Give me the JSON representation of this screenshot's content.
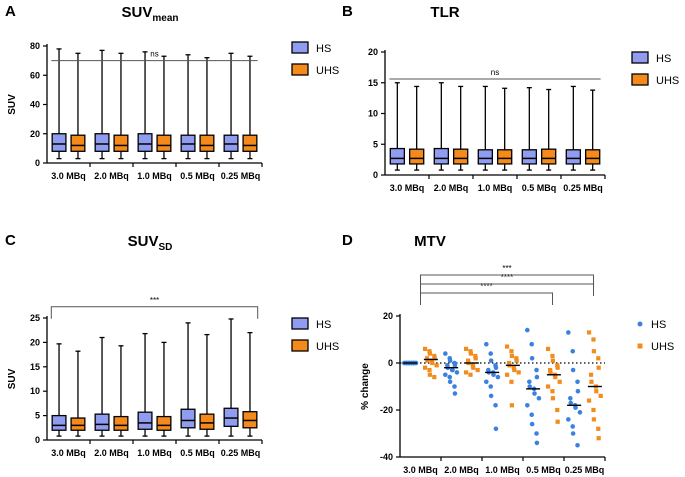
{
  "chart_data": [
    {
      "panel": "A",
      "type": "box",
      "title": "SUV",
      "title_sub": "mean",
      "ylabel": "SUV",
      "ylim": [
        0,
        80
      ],
      "yticks": [
        "0",
        "20",
        "40",
        "60",
        "80"
      ],
      "categories": [
        "3.0 MBq",
        "2.0 MBq",
        "1.0 MBq",
        "0.5 MBq",
        "0.25 MBq"
      ],
      "legend": [
        "HS",
        "UHS"
      ],
      "series": [
        {
          "name": "HS",
          "boxes": [
            {
              "min": 3,
              "q1": 8,
              "median": 13,
              "q3": 20,
              "max": 78
            },
            {
              "min": 3,
              "q1": 8,
              "median": 13,
              "q3": 20,
              "max": 77
            },
            {
              "min": 3,
              "q1": 8,
              "median": 13,
              "q3": 20,
              "max": 76
            },
            {
              "min": 3,
              "q1": 8,
              "median": 13,
              "q3": 19,
              "max": 74
            },
            {
              "min": 3,
              "q1": 8,
              "median": 13,
              "q3": 19,
              "max": 75
            }
          ]
        },
        {
          "name": "UHS",
          "boxes": [
            {
              "min": 3,
              "q1": 8,
              "median": 12,
              "q3": 19,
              "max": 75
            },
            {
              "min": 3,
              "q1": 8,
              "median": 12,
              "q3": 19,
              "max": 75
            },
            {
              "min": 3,
              "q1": 8,
              "median": 12,
              "q3": 19,
              "max": 73
            },
            {
              "min": 3,
              "q1": 8,
              "median": 12,
              "q3": 19,
              "max": 72
            },
            {
              "min": 3,
              "q1": 8,
              "median": 12,
              "q3": 19,
              "max": 73
            }
          ]
        }
      ],
      "significance": [
        {
          "from": 0,
          "to": 4,
          "y": 70,
          "label": "ns"
        }
      ]
    },
    {
      "panel": "B",
      "type": "box",
      "title": "TLR",
      "title_sub": "",
      "ylabel": "",
      "ylim": [
        0,
        20
      ],
      "yticks": [
        "0",
        "5",
        "10",
        "15",
        "20"
      ],
      "categories": [
        "3.0 MBq",
        "2.0 MBq",
        "1.0 MBq",
        "0.5 MBq",
        "0.25 MBq"
      ],
      "legend": [
        "HS",
        "UHS"
      ],
      "series": [
        {
          "name": "HS",
          "boxes": [
            {
              "min": 0.8,
              "q1": 1.8,
              "median": 2.7,
              "q3": 4.3,
              "max": 15.0
            },
            {
              "min": 0.8,
              "q1": 1.8,
              "median": 2.7,
              "q3": 4.3,
              "max": 15.0
            },
            {
              "min": 0.8,
              "q1": 1.8,
              "median": 2.7,
              "q3": 4.1,
              "max": 14.4
            },
            {
              "min": 0.8,
              "q1": 1.8,
              "median": 2.7,
              "q3": 4.1,
              "max": 14.2
            },
            {
              "min": 0.8,
              "q1": 1.8,
              "median": 2.7,
              "q3": 4.1,
              "max": 14.4
            }
          ]
        },
        {
          "name": "UHS",
          "boxes": [
            {
              "min": 0.8,
              "q1": 1.8,
              "median": 2.7,
              "q3": 4.2,
              "max": 14.4
            },
            {
              "min": 0.8,
              "q1": 1.8,
              "median": 2.7,
              "q3": 4.2,
              "max": 14.4
            },
            {
              "min": 0.8,
              "q1": 1.8,
              "median": 2.7,
              "q3": 4.1,
              "max": 14.1
            },
            {
              "min": 0.8,
              "q1": 1.8,
              "median": 2.7,
              "q3": 4.2,
              "max": 13.9
            },
            {
              "min": 0.8,
              "q1": 1.8,
              "median": 2.7,
              "q3": 4.1,
              "max": 13.8
            }
          ]
        }
      ],
      "significance": [
        {
          "from": 0,
          "to": 4,
          "y": 15.6,
          "label": "ns"
        }
      ]
    },
    {
      "panel": "C",
      "type": "box",
      "title": "SUV",
      "title_sub": "SD",
      "ylabel": "SUV",
      "ylim": [
        0,
        25
      ],
      "yticks": [
        "0",
        "5",
        "10",
        "15",
        "20",
        "25"
      ],
      "categories": [
        "3.0 MBq",
        "2.0 MBq",
        "1.0 MBq",
        "0.5 MBq",
        "0.25 MBq"
      ],
      "legend": [
        "HS",
        "UHS"
      ],
      "series": [
        {
          "name": "HS",
          "boxes": [
            {
              "min": 0.8,
              "q1": 2.0,
              "median": 3.0,
              "q3": 5.0,
              "max": 19.7
            },
            {
              "min": 0.8,
              "q1": 2.0,
              "median": 3.2,
              "q3": 5.3,
              "max": 21.0
            },
            {
              "min": 0.8,
              "q1": 2.2,
              "median": 3.5,
              "q3": 5.7,
              "max": 21.8
            },
            {
              "min": 0.8,
              "q1": 2.5,
              "median": 4.0,
              "q3": 6.3,
              "max": 24.0
            },
            {
              "min": 0.8,
              "q1": 2.8,
              "median": 4.5,
              "q3": 6.5,
              "max": 24.8
            }
          ]
        },
        {
          "name": "UHS",
          "boxes": [
            {
              "min": 0.8,
              "q1": 2.0,
              "median": 3.0,
              "q3": 4.5,
              "max": 18.2
            },
            {
              "min": 0.8,
              "q1": 2.0,
              "median": 3.0,
              "q3": 4.8,
              "max": 19.3
            },
            {
              "min": 0.8,
              "q1": 2.0,
              "median": 3.0,
              "q3": 4.8,
              "max": 20.0
            },
            {
              "min": 0.8,
              "q1": 2.2,
              "median": 3.5,
              "q3": 5.3,
              "max": 21.6
            },
            {
              "min": 0.8,
              "q1": 2.5,
              "median": 4.0,
              "q3": 5.8,
              "max": 22.0
            }
          ]
        }
      ],
      "significance": [
        {
          "from": 0,
          "to": 4,
          "y": 27.3,
          "label": "***"
        }
      ]
    },
    {
      "panel": "D",
      "type": "scatter",
      "title": "MTV",
      "title_sub": "",
      "ylabel": "% change",
      "ylim": [
        -40,
        20
      ],
      "yticks": [
        "-40",
        "-20",
        "0",
        "20"
      ],
      "categories": [
        "3.0 MBq",
        "2.0 MBq",
        "1.0 MBq",
        "0.5 MBq",
        "0.25 MBq"
      ],
      "legend": [
        "HS",
        "UHS"
      ],
      "series": [
        {
          "name": "HS",
          "points": [
            [
              0,
              0,
              0,
              0,
              0,
              0,
              0,
              0,
              0,
              0,
              0,
              0,
              0,
              0,
              0,
              0,
              0,
              0,
              0,
              0
            ],
            [
              4,
              2,
              1,
              0,
              -1,
              -1,
              -2,
              -3,
              -3,
              -4,
              -5,
              -6,
              -8,
              -10,
              -13
            ],
            [
              8,
              4,
              1,
              -1,
              -2,
              -3,
              -4,
              -4,
              -5,
              -6,
              -8,
              -10,
              -14,
              -18,
              -28
            ],
            [
              14,
              8,
              2,
              -3,
              -6,
              -8,
              -10,
              -11,
              -13,
              -15,
              -18,
              -22,
              -26,
              -30,
              -34
            ],
            [
              13,
              5,
              -3,
              -8,
              -12,
              -15,
              -17,
              -18,
              -19,
              -21,
              -24,
              -27,
              -30,
              -35
            ]
          ],
          "medians": [
            0,
            -2,
            -4,
            -11,
            -18
          ]
        },
        {
          "name": "UHS",
          "points": [
            [
              6,
              5,
              4,
              3,
              2,
              2,
              1,
              1,
              0,
              -1,
              -2,
              -3,
              -5,
              -6
            ],
            [
              6,
              5,
              4,
              3,
              2,
              1,
              0,
              -1,
              -2,
              -3,
              -4,
              -5
            ],
            [
              7,
              5,
              3,
              2,
              1,
              0,
              -1,
              -2,
              -3,
              -4,
              -5,
              -8,
              -18
            ],
            [
              6,
              3,
              1,
              -1,
              -2,
              -3,
              -4,
              -5,
              -6,
              -8,
              -10,
              -12,
              -15,
              -20,
              -25
            ],
            [
              13,
              10,
              5,
              2,
              -2,
              -5,
              -8,
              -10,
              -12,
              -14,
              -16,
              -20,
              -24,
              -28,
              -32
            ]
          ],
          "medians": [
            1.5,
            0,
            -1,
            -5,
            -10
          ]
        }
      ],
      "significance": [
        {
          "from": 0,
          "to": 3,
          "y": 23,
          "label": "****"
        },
        {
          "from": 0,
          "to": 4,
          "y": 32,
          "label": "****"
        },
        {
          "from": 0,
          "to": 4,
          "y": 41,
          "label": "***"
        }
      ]
    }
  ],
  "colors": {
    "hs": "#8f9cf0",
    "uhs": "#f58a1c",
    "hs_point": "#3b82e0",
    "uhs_point": "#f28c1e",
    "line": "#000000",
    "sig_line": "#555555"
  }
}
